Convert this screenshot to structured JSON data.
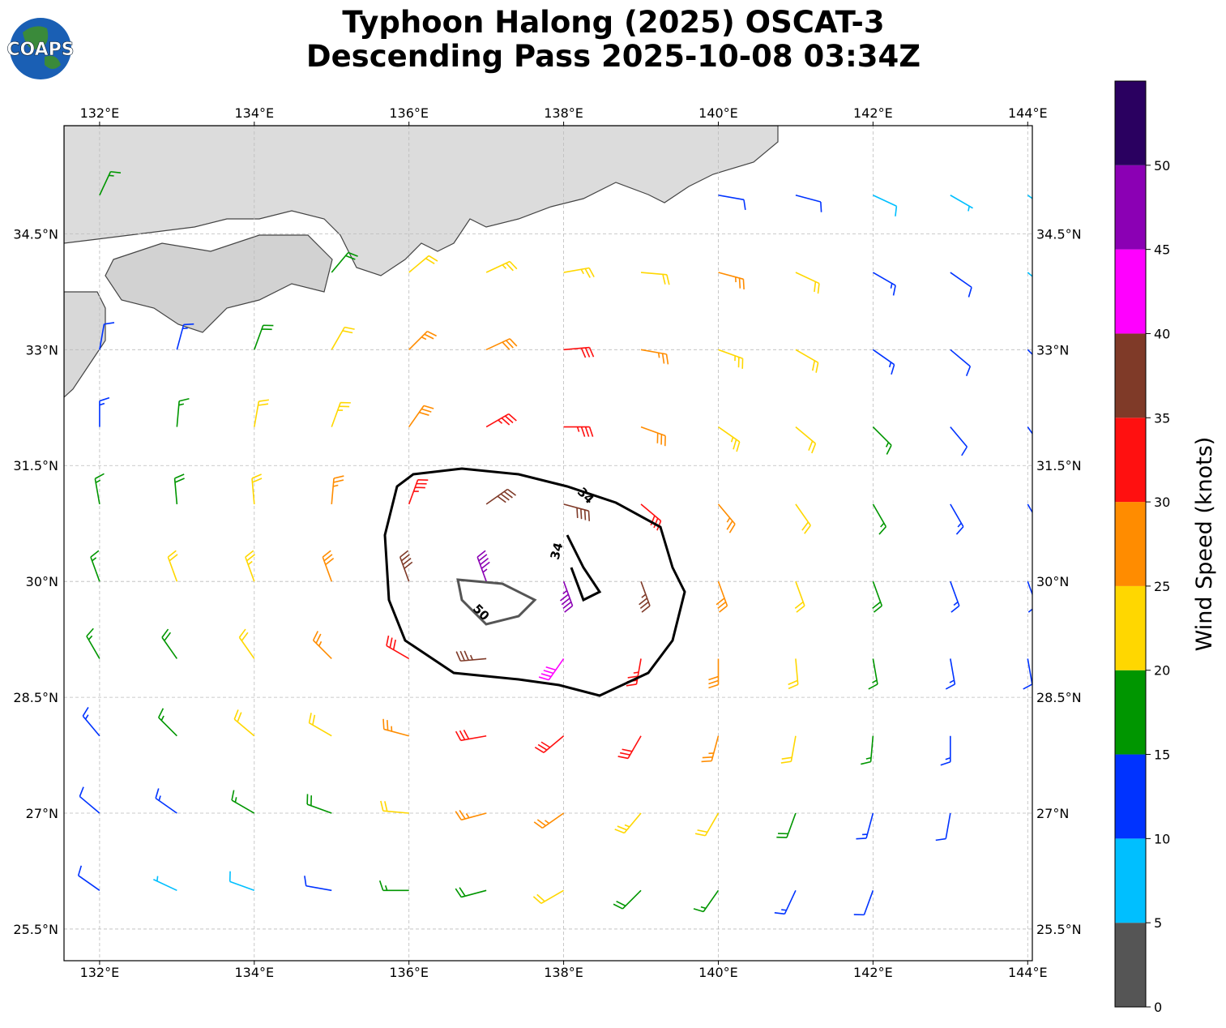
{
  "header": {
    "title_lines": [
      "Typhoon Halong (2025) OSCAT-3",
      "Descending Pass 2025-10-08 03:34Z"
    ]
  },
  "logo": {
    "text": "COAPS"
  },
  "map": {
    "lon_extent": [
      131.54,
      144.06
    ],
    "lat_extent": [
      25.09,
      35.9
    ],
    "grid": true,
    "lon_ticks": [
      {
        "value": 132,
        "label": "132°E"
      },
      {
        "value": 134,
        "label": "134°E"
      },
      {
        "value": 136,
        "label": "136°E"
      },
      {
        "value": 138,
        "label": "138°E"
      },
      {
        "value": 140,
        "label": "140°E"
      },
      {
        "value": 142,
        "label": "142°E"
      },
      {
        "value": 144,
        "label": "144°E"
      }
    ],
    "lat_ticks": [
      {
        "value": 25.5,
        "label": "25.5°N"
      },
      {
        "value": 27,
        "label": "27°N"
      },
      {
        "value": 28.5,
        "label": "28.5°N"
      },
      {
        "value": 30,
        "label": "30°N"
      },
      {
        "value": 31.5,
        "label": "31.5°N"
      },
      {
        "value": 33,
        "label": "33°N"
      },
      {
        "value": 34.5,
        "label": "34.5°N"
      }
    ]
  },
  "contours": {
    "labels": [
      34,
      34,
      50
    ]
  },
  "wind_barbs": {
    "lons": [
      132,
      133,
      134,
      135,
      136,
      137,
      138,
      139,
      140,
      141,
      142,
      143,
      144
    ],
    "lats": [
      35,
      34,
      33,
      32,
      31,
      30,
      29,
      28,
      27,
      26
    ],
    "speed": [
      [
        17,
        null,
        null,
        null,
        null,
        null,
        null,
        null,
        12,
        12,
        8,
        6,
        5
      ],
      [
        null,
        null,
        null,
        18,
        22,
        24,
        23,
        22,
        26,
        22,
        14,
        10,
        8
      ],
      [
        12,
        14,
        18,
        22,
        25,
        28,
        30,
        27,
        24,
        20,
        14,
        10,
        10
      ],
      [
        14,
        17,
        20,
        24,
        28,
        33,
        33,
        29,
        24,
        20,
        16,
        12,
        10
      ],
      [
        16,
        19,
        22,
        26,
        33,
        38,
        38,
        32,
        26,
        21,
        17,
        13,
        10
      ],
      [
        17,
        20,
        23,
        28,
        38,
        46,
        45,
        36,
        28,
        22,
        18,
        14,
        11
      ],
      [
        16,
        19,
        22,
        26,
        30,
        37,
        42,
        34,
        28,
        22,
        17,
        14,
        11
      ],
      [
        14,
        17,
        20,
        22,
        26,
        30,
        32,
        30,
        26,
        20,
        16,
        13,
        null
      ],
      [
        12,
        13,
        16,
        18,
        22,
        25,
        26,
        24,
        21,
        18,
        14,
        12,
        null
      ],
      [
        11,
        7,
        9,
        12,
        15,
        18,
        20,
        19,
        17,
        14,
        12,
        null,
        null
      ]
    ],
    "direction": [
      [
        25,
        null,
        null,
        null,
        null,
        null,
        null,
        null,
        100,
        105,
        115,
        120,
        125
      ],
      [
        null,
        null,
        null,
        40,
        50,
        65,
        80,
        95,
        105,
        115,
        120,
        125,
        130
      ],
      [
        10,
        15,
        20,
        30,
        45,
        65,
        85,
        100,
        110,
        120,
        125,
        130,
        135
      ],
      [
        0,
        5,
        10,
        20,
        35,
        60,
        90,
        110,
        125,
        130,
        135,
        140,
        145
      ],
      [
        350,
        355,
        355,
        5,
        20,
        55,
        105,
        130,
        140,
        145,
        150,
        150,
        150
      ],
      [
        340,
        340,
        340,
        340,
        340,
        340,
        160,
        160,
        160,
        160,
        160,
        160,
        160
      ],
      [
        330,
        325,
        325,
        315,
        300,
        265,
        215,
        190,
        180,
        175,
        170,
        170,
        170
      ],
      [
        320,
        315,
        310,
        300,
        285,
        260,
        230,
        210,
        195,
        190,
        185,
        180,
        null
      ],
      [
        310,
        305,
        300,
        290,
        275,
        255,
        235,
        220,
        210,
        200,
        195,
        190,
        null
      ],
      [
        305,
        295,
        290,
        280,
        270,
        255,
        240,
        225,
        215,
        205,
        200,
        null,
        null
      ]
    ]
  },
  "colorbar": {
    "label": "Wind Speed (knots)",
    "boundaries": [
      0,
      5,
      10,
      15,
      20,
      25,
      30,
      35,
      40,
      45,
      50,
      55
    ],
    "colors": [
      "#555555",
      "#00bfff",
      "#0033ff",
      "#009600",
      "#ffd700",
      "#ff8c00",
      "#ff1010",
      "#7f3a28",
      "#ff00ff",
      "#8b00b4",
      "#2a0060"
    ],
    "ticks": [
      0,
      5,
      10,
      15,
      20,
      25,
      30,
      35,
      40,
      45,
      50
    ]
  }
}
